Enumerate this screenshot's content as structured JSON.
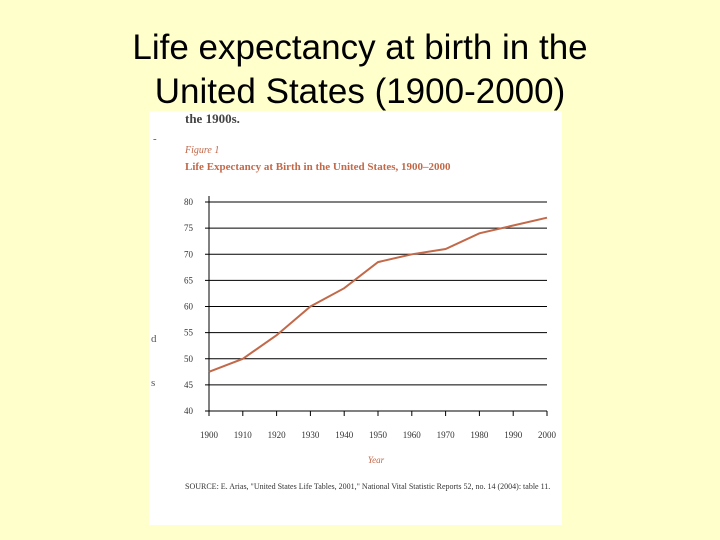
{
  "slide": {
    "title_line1": "Life expectancy at birth in the",
    "title_line2": "United States (1900-2000)"
  },
  "figure": {
    "top_fragment": "the 1900s.",
    "label": "Figure 1",
    "title": "Life Expectancy at Birth in the United States, 1900–2000",
    "source": "SOURCE: E. Arias, \"United States Life Tables, 2001,\" National Vital Statistic Reports 52, no. 14 (2004): table 11.",
    "left_marks": [
      "-",
      "d",
      "s"
    ]
  },
  "colors": {
    "background": "#ffffcc",
    "line": "#c2694a",
    "grid": "#000000",
    "accent_text": "#c2694a"
  },
  "chart_data": {
    "type": "line",
    "title": "Life Expectancy at Birth in the United States, 1900–2000",
    "xlabel": "Year",
    "ylabel": "",
    "x": [
      1900,
      1910,
      1920,
      1930,
      1940,
      1950,
      1960,
      1970,
      1980,
      1990,
      2000
    ],
    "series": [
      {
        "values": [
          47.5,
          50.0,
          54.5,
          60.0,
          63.5,
          68.5,
          70.0,
          71.0,
          74.0,
          75.5,
          77.0
        ]
      }
    ],
    "xticks": [
      "1900",
      "1910",
      "1920",
      "1930",
      "1940",
      "1950",
      "1960",
      "1970",
      "1980",
      "1990",
      "2000"
    ],
    "yticks": [
      "40",
      "45",
      "50",
      "55",
      "60",
      "65",
      "70",
      "75",
      "80"
    ],
    "xlim": [
      1900,
      2000
    ],
    "ylim": [
      40,
      80
    ],
    "grid": true
  }
}
